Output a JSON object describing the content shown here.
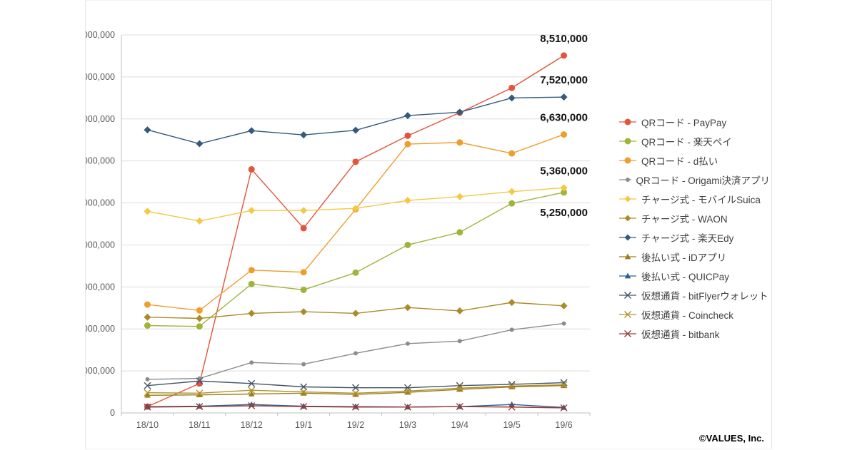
{
  "footer": {
    "copyright": "©VALUES, Inc."
  },
  "chart_data": {
    "type": "line",
    "title": "",
    "xlabel": "",
    "ylabel": "",
    "x": [
      "18/10",
      "18/11",
      "18/12",
      "19/1",
      "19/2",
      "19/3",
      "19/4",
      "19/5",
      "19/6"
    ],
    "ylim": [
      0,
      9000000
    ],
    "ytick_step": 1000000,
    "grid": true,
    "legend_position": "right",
    "series": [
      {
        "key": "paypay",
        "name": "QRコード - PayPay",
        "color": "#e2543b",
        "marker": "circle",
        "marker_size": 4.5,
        "values": [
          150000,
          700000,
          5800000,
          4400000,
          5980000,
          6600000,
          7150000,
          7740000,
          8510000
        ]
      },
      {
        "key": "rakuten_pay",
        "name": "QRコード - 楽天ペイ",
        "color": "#9eb53c",
        "marker": "circle",
        "marker_size": 4.5,
        "values": [
          2080000,
          2060000,
          3070000,
          2930000,
          3340000,
          4000000,
          4300000,
          4990000,
          5250000
        ]
      },
      {
        "key": "d_barai",
        "name": "QRコード - d払い",
        "color": "#ef9e2c",
        "marker": "circle",
        "marker_size": 4.5,
        "values": [
          2580000,
          2440000,
          3400000,
          3350000,
          4850000,
          6400000,
          6440000,
          6180000,
          6630000
        ]
      },
      {
        "key": "origami",
        "name": "QRコード - Origami決済アプリ",
        "color": "#8c8c8c",
        "marker": "circle",
        "marker_size": 3,
        "values": [
          800000,
          820000,
          1200000,
          1160000,
          1420000,
          1650000,
          1710000,
          1980000,
          2130000
        ]
      },
      {
        "key": "mobile_suica",
        "name": "チャージ式 - モバイルSuica",
        "color": "#f4c842",
        "marker": "diamond",
        "marker_size": 5,
        "values": [
          4800000,
          4570000,
          4820000,
          4820000,
          4870000,
          5060000,
          5150000,
          5270000,
          5360000
        ]
      },
      {
        "key": "waon",
        "name": "チャージ式 - WAON",
        "color": "#ab8b28",
        "marker": "diamond",
        "marker_size": 5,
        "values": [
          2280000,
          2250000,
          2370000,
          2410000,
          2370000,
          2510000,
          2430000,
          2630000,
          2550000
        ]
      },
      {
        "key": "rakuten_edy",
        "name": "チャージ式 - 楽天Edy",
        "color": "#365a7c",
        "marker": "diamond",
        "marker_size": 5,
        "values": [
          6740000,
          6410000,
          6720000,
          6620000,
          6730000,
          7080000,
          7160000,
          7500000,
          7520000
        ]
      },
      {
        "key": "id_app",
        "name": "後払い式 - iDアプリ",
        "color": "#9c7f1e",
        "marker": "triangle",
        "marker_size": 4.5,
        "values": [
          420000,
          430000,
          450000,
          470000,
          440000,
          490000,
          560000,
          620000,
          650000
        ]
      },
      {
        "key": "quicpay",
        "name": "後払い式 - QUICPay",
        "color": "#31608f",
        "marker": "triangle",
        "marker_size": 4.5,
        "values": [
          150000,
          160000,
          200000,
          160000,
          150000,
          140000,
          150000,
          200000,
          130000
        ]
      },
      {
        "key": "bitflyer",
        "name": "仮想通貨 - bitFlyerウォレット",
        "color": "#44546a",
        "marker": "x",
        "marker_size": 4.5,
        "values": [
          650000,
          760000,
          700000,
          620000,
          600000,
          600000,
          650000,
          680000,
          720000
        ]
      },
      {
        "key": "coincheck",
        "name": "仮想通貨 - Coincheck",
        "color": "#b3922c",
        "marker": "x",
        "marker_size": 4.5,
        "values": [
          480000,
          470000,
          540000,
          500000,
          470000,
          520000,
          590000,
          640000,
          670000
        ]
      },
      {
        "key": "bitbank",
        "name": "仮想通貨 - bitbank",
        "color": "#963c36",
        "marker": "x",
        "marker_size": 4.5,
        "values": [
          140000,
          150000,
          170000,
          150000,
          140000,
          140000,
          150000,
          140000,
          120000
        ]
      }
    ],
    "annotations": [
      {
        "series": "paypay",
        "text": "8,510,000",
        "position": "above"
      },
      {
        "series": "rakuten_edy",
        "text": "7,520,000",
        "position": "above"
      },
      {
        "series": "d_barai",
        "text": "6,630,000",
        "position": "above"
      },
      {
        "series": "mobile_suica",
        "text": "5,360,000",
        "position": "above"
      },
      {
        "series": "rakuten_pay",
        "text": "5,250,000",
        "position": "below"
      }
    ]
  }
}
